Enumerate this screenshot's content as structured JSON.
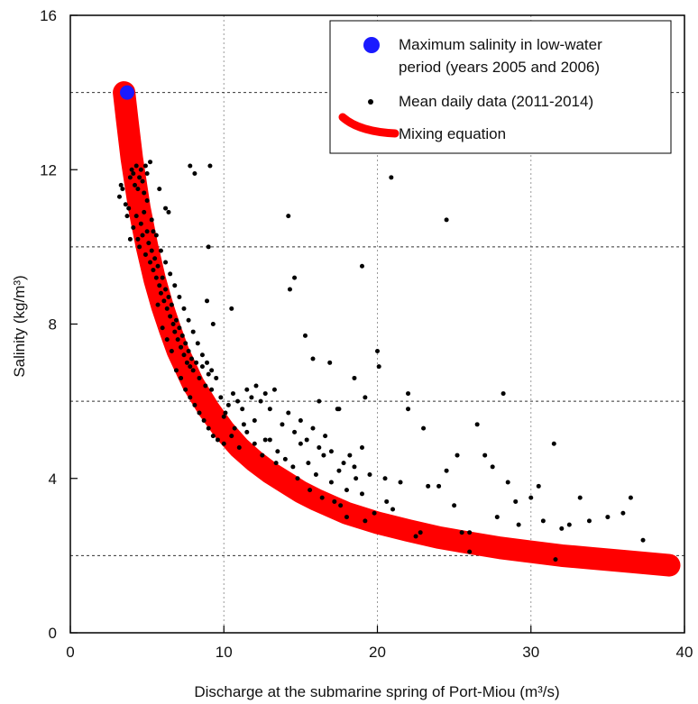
{
  "chart_data": {
    "type": "scatter",
    "title": "",
    "xlabel": "Discharge at the submarine spring of Port-Miou (m³/s)",
    "ylabel": "Salinity (kg/m³)",
    "xlim": [
      0,
      40
    ],
    "ylim": [
      0,
      16
    ],
    "xticks": [
      "0",
      "10",
      "20",
      "30",
      "40"
    ],
    "yticks": [
      "0",
      "4",
      "8",
      "12",
      "16"
    ],
    "grid": {
      "vertical": "dotted at 10, 20, 30",
      "horizontal": "dashed at 2, 6, 10, 14"
    },
    "legend_position": "top-right",
    "colors": {
      "max": "#1a1aff",
      "daily": "#000000",
      "mixing": "#ff0000"
    },
    "legend": [
      {
        "label_line1": "Maximum salinity in low-water",
        "label_line2": "period (years 2005 and 2006)"
      },
      {
        "label_line1": "Mean daily data (2011-2014)"
      },
      {
        "label_line1": "Mixing equation"
      }
    ],
    "series": [
      {
        "name": "Maximum salinity in low-water period (years 2005 and 2006)",
        "type": "scatter",
        "points": [
          [
            3.7,
            14.0
          ]
        ]
      },
      {
        "name": "Mixing equation",
        "type": "line",
        "points": [
          [
            3.5,
            14.0
          ],
          [
            3.7,
            13.3
          ],
          [
            4.0,
            12.3
          ],
          [
            4.5,
            11.0
          ],
          [
            5.0,
            10.0
          ],
          [
            5.5,
            9.15
          ],
          [
            6.0,
            8.45
          ],
          [
            6.5,
            7.85
          ],
          [
            7.0,
            7.3
          ],
          [
            8.0,
            6.45
          ],
          [
            9.0,
            5.8
          ],
          [
            10.0,
            5.25
          ],
          [
            11.0,
            4.8
          ],
          [
            12.0,
            4.45
          ],
          [
            13.0,
            4.15
          ],
          [
            14.0,
            3.9
          ],
          [
            15.0,
            3.65
          ],
          [
            16.0,
            3.45
          ],
          [
            18.0,
            3.1
          ],
          [
            20.0,
            2.85
          ],
          [
            22.0,
            2.65
          ],
          [
            24.0,
            2.47
          ],
          [
            26.0,
            2.33
          ],
          [
            28.0,
            2.2
          ],
          [
            30.0,
            2.1
          ],
          [
            32.0,
            2.0
          ],
          [
            34.0,
            1.93
          ],
          [
            36.0,
            1.86
          ],
          [
            39.0,
            1.75
          ]
        ]
      },
      {
        "name": "Mean daily data (2011-2014)",
        "type": "scatter",
        "points": [
          [
            3.2,
            11.3
          ],
          [
            3.3,
            11.6
          ],
          [
            3.4,
            11.5
          ],
          [
            3.6,
            11.1
          ],
          [
            3.7,
            10.8
          ],
          [
            3.8,
            11.0
          ],
          [
            3.9,
            11.8
          ],
          [
            4.0,
            12.0
          ],
          [
            4.1,
            11.9
          ],
          [
            4.2,
            11.6
          ],
          [
            4.3,
            12.1
          ],
          [
            4.4,
            11.5
          ],
          [
            4.5,
            11.8
          ],
          [
            4.6,
            12.0
          ],
          [
            4.7,
            11.7
          ],
          [
            4.8,
            11.4
          ],
          [
            4.9,
            12.1
          ],
          [
            5.0,
            11.9
          ],
          [
            5.2,
            12.2
          ],
          [
            3.9,
            10.2
          ],
          [
            4.1,
            10.5
          ],
          [
            4.3,
            10.8
          ],
          [
            4.4,
            10.2
          ],
          [
            4.5,
            10.0
          ],
          [
            4.6,
            10.6
          ],
          [
            4.7,
            10.3
          ],
          [
            4.8,
            10.9
          ],
          [
            4.9,
            9.8
          ],
          [
            5.0,
            10.4
          ],
          [
            5.1,
            10.1
          ],
          [
            5.2,
            9.6
          ],
          [
            5.3,
            9.9
          ],
          [
            5.4,
            9.4
          ],
          [
            5.5,
            9.7
          ],
          [
            5.6,
            9.2
          ],
          [
            5.7,
            9.5
          ],
          [
            5.8,
            9.0
          ],
          [
            5.9,
            8.8
          ],
          [
            6.0,
            9.2
          ],
          [
            6.1,
            8.6
          ],
          [
            6.2,
            8.9
          ],
          [
            6.3,
            8.4
          ],
          [
            6.4,
            8.7
          ],
          [
            6.5,
            8.2
          ],
          [
            6.6,
            8.5
          ],
          [
            6.7,
            8.0
          ],
          [
            6.8,
            7.8
          ],
          [
            6.9,
            8.1
          ],
          [
            7.0,
            7.6
          ],
          [
            7.1,
            7.9
          ],
          [
            7.2,
            7.4
          ],
          [
            7.3,
            7.7
          ],
          [
            7.4,
            7.2
          ],
          [
            7.5,
            7.5
          ],
          [
            7.6,
            7.0
          ],
          [
            7.7,
            7.3
          ],
          [
            7.8,
            6.9
          ],
          [
            7.9,
            7.1
          ],
          [
            8.0,
            6.8
          ],
          [
            8.2,
            7.0
          ],
          [
            8.4,
            6.6
          ],
          [
            8.6,
            6.9
          ],
          [
            8.8,
            6.4
          ],
          [
            9.0,
            6.7
          ],
          [
            9.2,
            6.3
          ],
          [
            5.0,
            11.2
          ],
          [
            5.3,
            10.7
          ],
          [
            5.6,
            10.3
          ],
          [
            5.9,
            9.9
          ],
          [
            6.2,
            9.6
          ],
          [
            6.5,
            9.3
          ],
          [
            6.8,
            9.0
          ],
          [
            7.1,
            8.7
          ],
          [
            7.4,
            8.4
          ],
          [
            7.7,
            8.1
          ],
          [
            8.0,
            7.8
          ],
          [
            8.3,
            7.5
          ],
          [
            8.6,
            7.2
          ],
          [
            8.9,
            7.0
          ],
          [
            9.2,
            6.8
          ],
          [
            9.5,
            6.6
          ],
          [
            6.2,
            11.0
          ],
          [
            6.4,
            10.9
          ],
          [
            5.8,
            11.5
          ],
          [
            5.4,
            10.4
          ],
          [
            5.7,
            8.5
          ],
          [
            6.0,
            7.9
          ],
          [
            6.3,
            7.6
          ],
          [
            6.6,
            7.3
          ],
          [
            6.9,
            6.8
          ],
          [
            7.2,
            6.6
          ],
          [
            7.5,
            6.3
          ],
          [
            7.8,
            6.1
          ],
          [
            8.1,
            5.9
          ],
          [
            8.4,
            5.7
          ],
          [
            8.7,
            5.5
          ],
          [
            9.0,
            5.3
          ],
          [
            9.3,
            5.1
          ],
          [
            9.6,
            5.0
          ],
          [
            10.0,
            5.6
          ],
          [
            10.3,
            5.9
          ],
          [
            10.6,
            6.2
          ],
          [
            10.9,
            6.0
          ],
          [
            11.2,
            5.8
          ],
          [
            11.5,
            6.3
          ],
          [
            11.8,
            6.1
          ],
          [
            12.1,
            6.4
          ],
          [
            12.4,
            6.0
          ],
          [
            12.7,
            6.2
          ],
          [
            13.0,
            5.8
          ],
          [
            13.3,
            6.3
          ],
          [
            10.0,
            4.9
          ],
          [
            10.5,
            5.1
          ],
          [
            11.0,
            4.8
          ],
          [
            11.5,
            5.2
          ],
          [
            12.0,
            4.9
          ],
          [
            12.5,
            4.6
          ],
          [
            13.0,
            5.0
          ],
          [
            13.5,
            4.7
          ],
          [
            14.0,
            4.5
          ],
          [
            14.5,
            4.3
          ],
          [
            15.0,
            4.9
          ],
          [
            15.5,
            4.4
          ],
          [
            16.0,
            4.1
          ],
          [
            16.5,
            4.6
          ],
          [
            17.0,
            3.9
          ],
          [
            17.5,
            4.2
          ],
          [
            18.0,
            3.7
          ],
          [
            18.5,
            4.3
          ],
          [
            19.0,
            3.6
          ],
          [
            19.5,
            4.1
          ],
          [
            13.8,
            5.4
          ],
          [
            14.2,
            5.7
          ],
          [
            14.6,
            5.2
          ],
          [
            15.0,
            5.5
          ],
          [
            15.4,
            5.0
          ],
          [
            15.8,
            5.3
          ],
          [
            16.2,
            4.8
          ],
          [
            16.6,
            5.1
          ],
          [
            17.0,
            4.7
          ],
          [
            17.4,
            5.8
          ],
          [
            17.8,
            4.4
          ],
          [
            18.2,
            4.6
          ],
          [
            18.6,
            4.0
          ],
          [
            19.0,
            4.8
          ],
          [
            7.8,
            12.1
          ],
          [
            8.1,
            11.9
          ],
          [
            9.1,
            12.1
          ],
          [
            9.0,
            10.0
          ],
          [
            10.5,
            8.4
          ],
          [
            8.9,
            8.6
          ],
          [
            9.3,
            8.0
          ],
          [
            14.2,
            10.8
          ],
          [
            14.3,
            8.9
          ],
          [
            14.6,
            9.2
          ],
          [
            15.3,
            7.7
          ],
          [
            16.9,
            7.0
          ],
          [
            15.8,
            7.1
          ],
          [
            16.2,
            6.0
          ],
          [
            17.5,
            5.8
          ],
          [
            18.5,
            6.6
          ],
          [
            19.0,
            9.5
          ],
          [
            19.2,
            6.1
          ],
          [
            20.0,
            7.3
          ],
          [
            20.1,
            6.9
          ],
          [
            20.9,
            11.8
          ],
          [
            24.5,
            10.7
          ],
          [
            22.0,
            6.2
          ],
          [
            22.0,
            5.8
          ],
          [
            23.0,
            5.3
          ],
          [
            24.5,
            4.2
          ],
          [
            25.2,
            4.6
          ],
          [
            26.5,
            5.4
          ],
          [
            27.0,
            4.6
          ],
          [
            27.5,
            4.3
          ],
          [
            28.2,
            6.2
          ],
          [
            28.5,
            3.9
          ],
          [
            29.0,
            3.4
          ],
          [
            30.0,
            3.5
          ],
          [
            30.5,
            3.8
          ],
          [
            31.5,
            4.9
          ],
          [
            32.5,
            2.8
          ],
          [
            33.2,
            3.5
          ],
          [
            33.8,
            2.9
          ],
          [
            35.0,
            3.0
          ],
          [
            36.0,
            3.1
          ],
          [
            36.5,
            3.5
          ],
          [
            37.3,
            2.4
          ],
          [
            31.6,
            1.9
          ],
          [
            26.0,
            2.1
          ],
          [
            26.0,
            2.6
          ],
          [
            25.0,
            3.3
          ],
          [
            24.0,
            3.8
          ],
          [
            23.3,
            3.8
          ],
          [
            22.5,
            2.5
          ],
          [
            21.5,
            3.9
          ],
          [
            20.5,
            4.0
          ],
          [
            21.0,
            3.2
          ],
          [
            22.8,
            2.6
          ],
          [
            25.5,
            2.6
          ],
          [
            27.8,
            3.0
          ],
          [
            29.2,
            2.8
          ],
          [
            30.8,
            2.9
          ],
          [
            32.0,
            2.7
          ],
          [
            17.6,
            3.3
          ],
          [
            19.2,
            2.9
          ],
          [
            19.8,
            3.1
          ],
          [
            20.6,
            3.4
          ],
          [
            12.0,
            5.5
          ],
          [
            12.7,
            5.0
          ],
          [
            13.4,
            4.4
          ],
          [
            14.8,
            4.0
          ],
          [
            15.6,
            3.7
          ],
          [
            16.4,
            3.5
          ],
          [
            17.2,
            3.4
          ],
          [
            18.0,
            3.0
          ],
          [
            11.3,
            5.4
          ],
          [
            10.7,
            5.3
          ],
          [
            10.1,
            5.7
          ],
          [
            9.8,
            6.1
          ]
        ]
      }
    ]
  }
}
